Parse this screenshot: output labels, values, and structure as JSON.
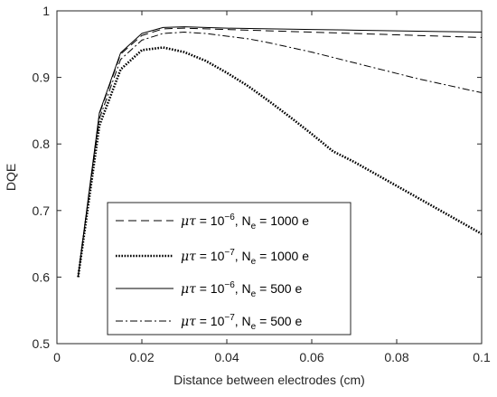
{
  "chart_data": {
    "type": "line",
    "xlabel": "Distance between electrodes (cm)",
    "ylabel": "DQE",
    "xlim": [
      0,
      0.1
    ],
    "ylim": [
      0.5,
      1
    ],
    "xticks": [
      0,
      0.02,
      0.04,
      0.06,
      0.08,
      0.1
    ],
    "xtick_labels": [
      "0",
      "0.02",
      "0.04",
      "0.06",
      "0.08",
      "0.1"
    ],
    "yticks": [
      0.5,
      0.6,
      0.7,
      0.8,
      0.9,
      1
    ],
    "ytick_labels": [
      "0.5",
      "0.6",
      "0.7",
      "0.8",
      "0.9",
      "1"
    ],
    "grid": false,
    "legend_position": "lower-left",
    "series": [
      {
        "name": "μτ = 10⁻⁶, Nₑ = 1000 e",
        "legend": {
          "mu": "μτ",
          "eq": " = 10",
          "exp": "−6",
          "sep": ", N",
          "sub": "e",
          "tail": " = 1000 e"
        },
        "style": "dashed",
        "color": "#000000",
        "x": [
          0.005,
          0.01,
          0.015,
          0.02,
          0.025,
          0.03,
          0.035,
          0.04,
          0.05,
          0.06,
          0.07,
          0.08,
          0.09,
          0.1
        ],
        "y": [
          0.602,
          0.845,
          0.935,
          0.963,
          0.973,
          0.974,
          0.973,
          0.972,
          0.97,
          0.968,
          0.966,
          0.964,
          0.962,
          0.96
        ]
      },
      {
        "name": "μτ = 10⁻⁷, Nₑ = 1000 e",
        "legend": {
          "mu": "μτ",
          "eq": " = 10",
          "exp": "−7",
          "sep": ", N",
          "sub": "e",
          "tail": " = 1000 e"
        },
        "style": "dotted",
        "color": "#000000",
        "x": [
          0.005,
          0.01,
          0.015,
          0.02,
          0.025,
          0.03,
          0.035,
          0.04,
          0.045,
          0.05,
          0.055,
          0.06,
          0.065,
          0.07,
          0.075,
          0.08,
          0.085,
          0.09,
          0.095,
          0.1
        ],
        "y": [
          0.6,
          0.828,
          0.912,
          0.941,
          0.945,
          0.938,
          0.925,
          0.907,
          0.887,
          0.864,
          0.84,
          0.815,
          0.789,
          0.773,
          0.755,
          0.737,
          0.719,
          0.701,
          0.683,
          0.665
        ]
      },
      {
        "name": "μτ = 10⁻⁶, Nₑ = 500 e",
        "legend": {
          "mu": "μτ",
          "eq": " = 10",
          "exp": "−6",
          "sep": ", N",
          "sub": "e",
          "tail": " = 500 e"
        },
        "style": "solid",
        "color": "#000000",
        "x": [
          0.005,
          0.01,
          0.015,
          0.02,
          0.025,
          0.03,
          0.035,
          0.04,
          0.05,
          0.06,
          0.07,
          0.08,
          0.09,
          0.1
        ],
        "y": [
          0.602,
          0.847,
          0.937,
          0.966,
          0.975,
          0.976,
          0.975,
          0.974,
          0.973,
          0.972,
          0.971,
          0.97,
          0.969,
          0.968
        ]
      },
      {
        "name": "μτ = 10⁻⁷, Nₑ = 500 e",
        "legend": {
          "mu": "μτ",
          "eq": " = 10",
          "exp": "−7",
          "sep": ", N",
          "sub": "e",
          "tail": " = 500 e"
        },
        "style": "dashdot",
        "color": "#000000",
        "x": [
          0.005,
          0.01,
          0.015,
          0.02,
          0.025,
          0.03,
          0.035,
          0.04,
          0.045,
          0.05,
          0.055,
          0.06,
          0.065,
          0.07,
          0.075,
          0.08,
          0.085,
          0.09,
          0.095,
          0.1
        ],
        "y": [
          0.601,
          0.838,
          0.927,
          0.956,
          0.966,
          0.968,
          0.966,
          0.962,
          0.958,
          0.952,
          0.945,
          0.938,
          0.93,
          0.922,
          0.914,
          0.906,
          0.898,
          0.891,
          0.884,
          0.877
        ]
      }
    ]
  }
}
